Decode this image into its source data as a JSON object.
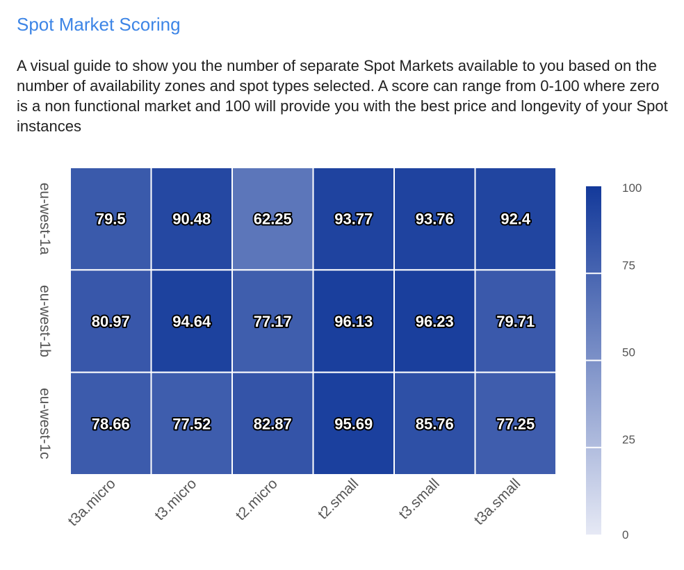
{
  "header": {
    "title": "Spot Market Scoring",
    "description": "A visual guide to show you the number of separate Spot Markets available to you based on the number of availability zones and spot types selected. A score can range from 0-100 where zero is a non functional market and 100 will provide you with the best price and longevity of your Spot instances"
  },
  "chart_data": {
    "type": "heatmap",
    "title": "",
    "xlabel": "",
    "ylabel": "",
    "x_categories": [
      "t3a.micro",
      "t3.micro",
      "t2.micro",
      "t2.small",
      "t3.small",
      "t3a.small"
    ],
    "y_categories": [
      "eu-west-1a",
      "eu-west-1b",
      "eu-west-1c"
    ],
    "values": [
      [
        79.5,
        90.48,
        62.25,
        93.77,
        93.76,
        92.4
      ],
      [
        80.97,
        94.64,
        77.17,
        96.13,
        96.23,
        79.71
      ],
      [
        78.66,
        77.52,
        82.87,
        95.69,
        85.76,
        77.25
      ]
    ],
    "colorbar": {
      "range": [
        0,
        100
      ],
      "ticks": [
        0,
        25,
        50,
        75,
        100
      ],
      "color_low": "#e6e9f5",
      "color_high": "#13399a"
    }
  }
}
